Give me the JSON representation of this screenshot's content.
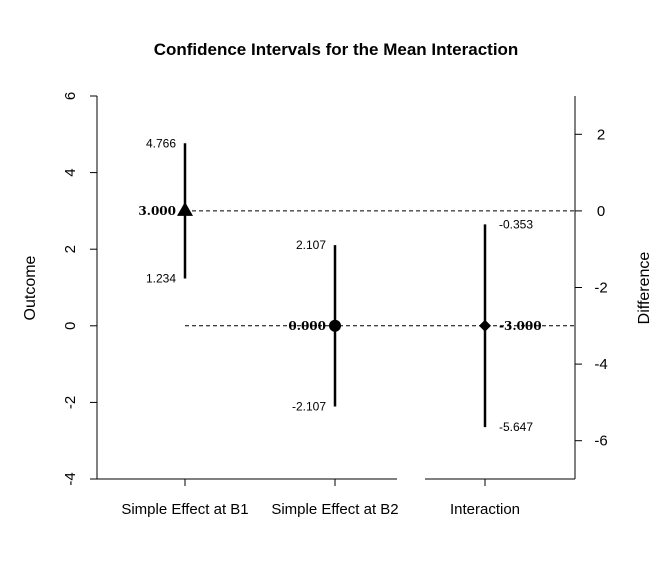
{
  "chart_data": {
    "type": "errorbar",
    "title": "Confidence Intervals for the Mean Interaction",
    "left_axis": {
      "label": "Outcome",
      "ylim": [
        -4,
        6
      ],
      "ticks": [
        -4,
        -2,
        0,
        2,
        4,
        6
      ]
    },
    "right_axis": {
      "label": "Difference",
      "ticks": [
        -6,
        -4,
        -2,
        0,
        2
      ],
      "offset": -3.0
    },
    "categories": [
      "Simple Effect at B1",
      "Simple Effect at B2",
      "Interaction"
    ],
    "points": [
      {
        "category": "Simple Effect at B1",
        "axis": "left",
        "estimate": 3.0,
        "lower": 1.234,
        "upper": 4.766,
        "estimate_label": "3.000",
        "lower_label": "1.234",
        "upper_label": "4.766",
        "marker": "triangle"
      },
      {
        "category": "Simple Effect at B2",
        "axis": "left",
        "estimate": 0.0,
        "lower": -2.107,
        "upper": 2.107,
        "estimate_label": "0.000",
        "lower_label": "-2.107",
        "upper_label": "2.107",
        "marker": "circle"
      },
      {
        "category": "Interaction",
        "axis": "right",
        "estimate": -3.0,
        "lower": -5.647,
        "upper": -0.353,
        "estimate_label": "-3.000",
        "lower_label": "-5.647",
        "upper_label": "-0.353",
        "marker": "diamond"
      }
    ],
    "reference_lines": [
      {
        "value": 3.0,
        "axis": "left",
        "style": "dashed"
      },
      {
        "value": 0.0,
        "axis": "left",
        "style": "dashed"
      }
    ],
    "grid": false
  }
}
